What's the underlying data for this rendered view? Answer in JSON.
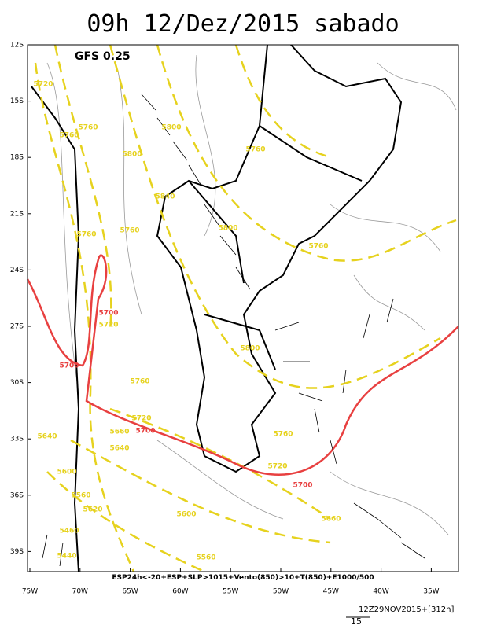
{
  "header": {
    "title": "09h 12/Dez/2015 sabado",
    "model": "GFS 0.25"
  },
  "axes": {
    "lat_labels": [
      "12S",
      "15S",
      "18S",
      "21S",
      "24S",
      "27S",
      "30S",
      "33S",
      "36S",
      "39S"
    ],
    "lon_labels": [
      "75W",
      "70W",
      "65W",
      "60W",
      "55W",
      "50W",
      "45W",
      "40W",
      "35W"
    ]
  },
  "contour_labels": [
    "5720",
    "5760",
    "5760",
    "5800",
    "5760",
    "5800",
    "5840",
    "5800",
    "5760",
    "5760",
    "5760",
    "5700",
    "5720",
    "5700",
    "5800",
    "5760",
    "5720",
    "5700",
    "5660",
    "5640",
    "5640",
    "5760",
    "5720",
    "5700",
    "5600",
    "5560",
    "5620",
    "5600",
    "5660",
    "5460",
    "5440",
    "5560"
  ],
  "caption": "ESP24h<-20+ESP+SLP>1015+Vento(850)>10+T(850)+E1000/500",
  "footer": {
    "run": "12Z29NOV2015+[312h]",
    "vector_scale": "15"
  }
}
